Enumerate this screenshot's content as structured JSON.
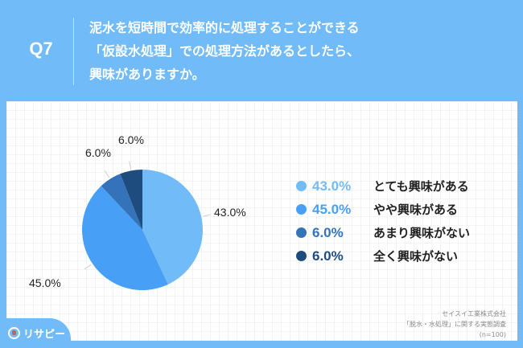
{
  "header": {
    "question_number": "Q7",
    "question_lines": [
      "泥水を短時間で効率的に処理することができる",
      "「仮設水処理」での処理方法があるとしたら、",
      "興味がありますか。"
    ]
  },
  "legend": [
    {
      "pct": "43.0%",
      "label": "とても興味がある",
      "color": "#71BCF8"
    },
    {
      "pct": "45.0%",
      "label": "やや興味がある",
      "color": "#47A0F5"
    },
    {
      "pct": "6.0%",
      "label": "あまり興味がない",
      "color": "#3472B9"
    },
    {
      "pct": "6.0%",
      "label": "全く興味がない",
      "color": "#1F4C7F"
    }
  ],
  "pie_labels": {
    "s1": "43.0%",
    "s2": "45.0%",
    "s3": "6.0%",
    "s4": "6.0%"
  },
  "source": {
    "line1": "セイスイ工業株式会社",
    "line2": "「脱水・水処理」に関する実態調査",
    "line3": "(n=100)"
  },
  "logo": {
    "text": "リサピー"
  },
  "chart_data": {
    "type": "pie",
    "title": "泥水を短時間で効率的に処理することができる「仮設水処理」での処理方法があるとしたら、興味がありますか。",
    "categories": [
      "とても興味がある",
      "やや興味がある",
      "あまり興味がない",
      "全く興味がない"
    ],
    "values": [
      43.0,
      45.0,
      6.0,
      6.0
    ],
    "unit": "%",
    "colors": [
      "#71BCF8",
      "#47A0F5",
      "#3472B9",
      "#1F4C7F"
    ],
    "start_angle": "12 o'clock, clockwise",
    "legend_position": "right",
    "sample_size": "n=100"
  }
}
